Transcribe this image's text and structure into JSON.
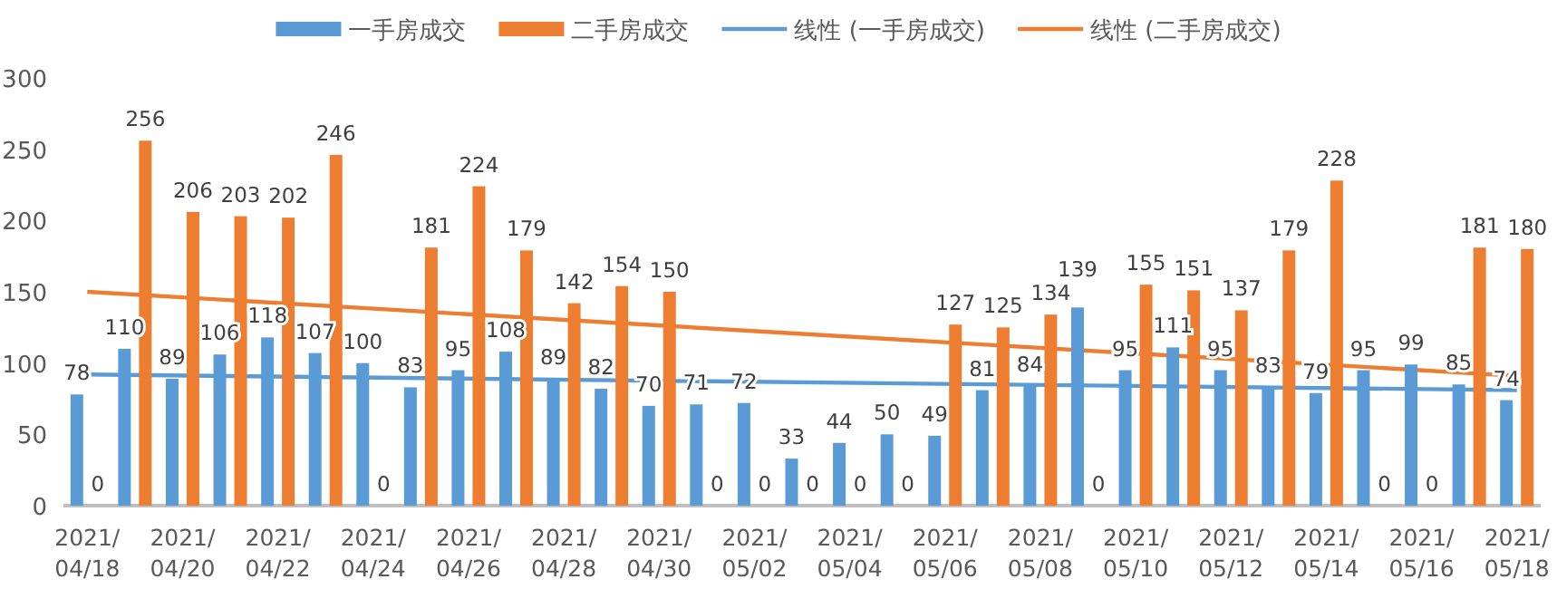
{
  "chart_data": {
    "type": "bar",
    "legend": "top",
    "ylim": [
      0,
      300
    ],
    "yticks": [
      0,
      50,
      100,
      150,
      200,
      250,
      300
    ],
    "categories": [
      "2021/04/18",
      null,
      "2021/04/20",
      null,
      "2021/04/22",
      null,
      "2021/04/24",
      null,
      "2021/04/26",
      null,
      "2021/04/28",
      null,
      "2021/04/30",
      null,
      "2021/05/02",
      null,
      "2021/05/04",
      null,
      "2021/05/06",
      null,
      "2021/05/08",
      null,
      "2021/05/10",
      null,
      "2021/05/12",
      null,
      "2021/05/14",
      null,
      "2021/05/16",
      null,
      "2021/05/18"
    ],
    "series": [
      {
        "name": "一手房成交",
        "color": "#5b9bd5",
        "values": [
          78,
          110,
          89,
          106,
          118,
          107,
          100,
          83,
          95,
          108,
          89,
          82,
          70,
          71,
          72,
          33,
          44,
          50,
          49,
          81,
          84,
          139,
          95,
          111,
          95,
          83,
          79,
          95,
          99,
          85,
          74
        ],
        "value_labels": [
          "78",
          "110",
          "89",
          "106",
          "118",
          "107",
          "100",
          "83",
          "95",
          "108",
          "89",
          "82",
          "70",
          "71",
          "72",
          "33",
          "44",
          "50",
          "49",
          "81",
          "84",
          "139",
          "95",
          "111",
          "95",
          "83",
          "79",
          "95",
          "99",
          "85",
          "74"
        ]
      },
      {
        "name": "二手房成交",
        "color": "#ed7d31",
        "values": [
          0,
          256,
          206,
          203,
          202,
          246,
          0,
          181,
          224,
          179,
          142,
          154,
          150,
          0,
          0,
          0,
          0,
          0,
          127,
          125,
          134,
          0,
          155,
          151,
          137,
          179,
          228,
          0,
          0,
          181,
          180
        ],
        "value_labels": [
          "0",
          "256",
          "206",
          "203",
          "202",
          "246",
          "0",
          "181",
          "224",
          "179",
          "142",
          "154",
          "150",
          "0",
          "0",
          "0",
          "0",
          "0",
          "127",
          "125",
          "134",
          "0",
          "155",
          "151",
          "137",
          "179",
          "228",
          "0",
          "0",
          "181",
          "180"
        ]
      },
      {
        "name": "线性 (一手房成交)",
        "type": "line",
        "color": "#5b9bd5",
        "x": [
          "2021/04/18",
          "2021/05/18"
        ],
        "values": [
          92,
          81
        ]
      },
      {
        "name": "线性 (二手房成交)",
        "type": "line",
        "color": "#ed7d31",
        "x": [
          "2021/04/18",
          "2021/05/18"
        ],
        "values": [
          150,
          91
        ]
      }
    ]
  }
}
